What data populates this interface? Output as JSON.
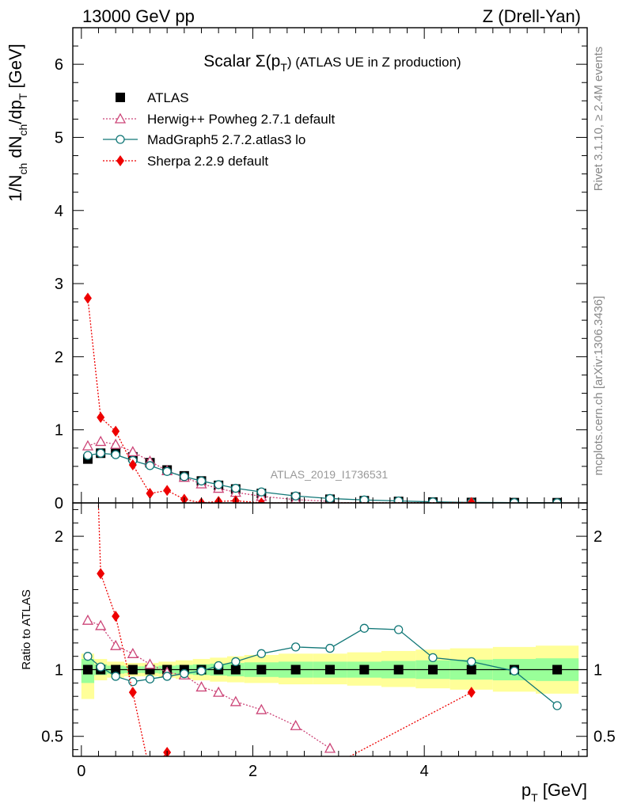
{
  "header": {
    "left": "13000 GeV pp",
    "right": "Z (Drell-Yan)"
  },
  "plot_title": {
    "prefix": "Scalar Σ(p",
    "sub": "T",
    "suffix": ") (ATLAS UE in Z production)"
  },
  "side_text": {
    "rivet": "Rivet 3.1.10, ≥ 2.4M events",
    "mcplots": "mcplots.cern.ch [arXiv:1306.3436]"
  },
  "watermark": "ATLAS_2019_I1736531",
  "ylabel_main": {
    "p1": "1/N",
    "s1": "ch",
    "p2": " dN",
    "s2": "ch",
    "p3": "/dp",
    "s3": "T",
    "p4": " [GeV]"
  },
  "ylabel_ratio": "Ratio to ATLAS",
  "xlabel": {
    "p1": "p",
    "s1": "T",
    "p2": " [GeV]"
  },
  "colors": {
    "atlas": "#000000",
    "herwig": "#cc4477",
    "madgraph": "#117777",
    "sherpa": "#ee0000",
    "band_inner": "#99ff99",
    "band_outer": "#ffff99"
  },
  "chart_data": {
    "type": "line",
    "x_ticks": [
      "0",
      "2",
      "4"
    ],
    "x_range": [
      -0.1,
      5.9
    ],
    "main": {
      "y_range": [
        0,
        6.5
      ],
      "y_ticks": [
        "0",
        "1",
        "2",
        "3",
        "4",
        "5",
        "6"
      ]
    },
    "ratio": {
      "y_range": [
        0.35,
        2.25
      ],
      "y_ticks": [
        "0.5",
        "1",
        "2"
      ]
    },
    "bins": [
      [
        0.0,
        0.15
      ],
      [
        0.15,
        0.3
      ],
      [
        0.3,
        0.5
      ],
      [
        0.5,
        0.7
      ],
      [
        0.7,
        0.9
      ],
      [
        0.9,
        1.1
      ],
      [
        1.1,
        1.3
      ],
      [
        1.3,
        1.5
      ],
      [
        1.5,
        1.7
      ],
      [
        1.7,
        1.9
      ],
      [
        1.9,
        2.3
      ],
      [
        2.3,
        2.7
      ],
      [
        2.7,
        3.1
      ],
      [
        3.1,
        3.5
      ],
      [
        3.5,
        3.9
      ],
      [
        3.9,
        4.3
      ],
      [
        4.3,
        4.8
      ],
      [
        4.8,
        5.3
      ],
      [
        5.3,
        5.8
      ]
    ],
    "band_inner": [
      [
        0.9,
        1.08
      ],
      [
        0.96,
        1.04
      ],
      [
        0.97,
        1.03
      ],
      [
        0.975,
        1.025
      ],
      [
        0.975,
        1.025
      ],
      [
        0.97,
        1.03
      ],
      [
        0.965,
        1.035
      ],
      [
        0.96,
        1.04
      ],
      [
        0.955,
        1.045
      ],
      [
        0.95,
        1.05
      ],
      [
        0.945,
        1.055
      ],
      [
        0.94,
        1.06
      ],
      [
        0.94,
        1.06
      ],
      [
        0.94,
        1.06
      ],
      [
        0.935,
        1.065
      ],
      [
        0.93,
        1.07
      ],
      [
        0.925,
        1.075
      ],
      [
        0.92,
        1.08
      ],
      [
        0.915,
        1.085
      ]
    ],
    "band_outer": [
      [
        0.78,
        1.12
      ],
      [
        0.92,
        1.08
      ],
      [
        0.94,
        1.06
      ],
      [
        0.95,
        1.05
      ],
      [
        0.95,
        1.05
      ],
      [
        0.94,
        1.06
      ],
      [
        0.93,
        1.07
      ],
      [
        0.92,
        1.08
      ],
      [
        0.91,
        1.09
      ],
      [
        0.905,
        1.1
      ],
      [
        0.9,
        1.11
      ],
      [
        0.89,
        1.12
      ],
      [
        0.89,
        1.12
      ],
      [
        0.88,
        1.13
      ],
      [
        0.87,
        1.14
      ],
      [
        0.86,
        1.15
      ],
      [
        0.85,
        1.16
      ],
      [
        0.835,
        1.17
      ],
      [
        0.82,
        1.18
      ]
    ],
    "series": [
      {
        "name": "ATLAS",
        "x": [
          0.075,
          0.225,
          0.4,
          0.6,
          0.8,
          1.0,
          1.2,
          1.4,
          1.6,
          1.8,
          2.1,
          2.5,
          2.9,
          3.3,
          3.7,
          4.1,
          4.55,
          5.05,
          5.55
        ],
        "y": [
          0.6,
          0.68,
          0.7,
          0.63,
          0.55,
          0.45,
          0.37,
          0.3,
          0.24,
          0.19,
          0.13,
          0.08,
          0.05,
          0.03,
          0.02,
          0.012,
          0.006,
          0.004,
          0.003
        ],
        "ratio": [
          1,
          1,
          1,
          1,
          1,
          1,
          1,
          1,
          1,
          1,
          1,
          1,
          1,
          1,
          1,
          1,
          1,
          1,
          1
        ]
      },
      {
        "name": "Herwig++ Powheg 2.7.1 default",
        "x": [
          0.075,
          0.225,
          0.4,
          0.6,
          0.8,
          1.0,
          1.2,
          1.4,
          1.6,
          1.8,
          2.1,
          2.5,
          2.9
        ],
        "y": [
          0.78,
          0.84,
          0.8,
          0.7,
          0.57,
          0.44,
          0.35,
          0.26,
          0.2,
          0.145,
          0.09,
          0.045,
          0.021
        ],
        "ratio": [
          1.37,
          1.33,
          1.18,
          1.12,
          1.04,
          0.98,
          0.96,
          0.87,
          0.83,
          0.76,
          0.7,
          0.58,
          0.41
        ]
      },
      {
        "name": "MadGraph5 2.7.2.atlas3 lo",
        "x": [
          0.075,
          0.225,
          0.4,
          0.6,
          0.8,
          1.0,
          1.2,
          1.4,
          1.6,
          1.8,
          2.1,
          2.5,
          2.9,
          3.3,
          3.7,
          4.1,
          4.55,
          5.05,
          5.55
        ],
        "y": [
          0.65,
          0.68,
          0.66,
          0.58,
          0.51,
          0.43,
          0.36,
          0.3,
          0.25,
          0.2,
          0.15,
          0.095,
          0.06,
          0.041,
          0.027,
          0.014,
          0.007,
          0.004,
          0.0022
        ],
        "ratio": [
          1.1,
          1.02,
          0.95,
          0.91,
          0.93,
          0.95,
          0.97,
          0.99,
          1.03,
          1.06,
          1.12,
          1.17,
          1.16,
          1.31,
          1.3,
          1.09,
          1.06,
          0.99,
          0.73
        ]
      },
      {
        "name": "Sherpa 2.2.9 default",
        "x": [
          0.075,
          0.225,
          0.4,
          0.6,
          0.8,
          1.0,
          1.2,
          1.4,
          1.6,
          1.8,
          2.1,
          4.55
        ],
        "y": [
          2.8,
          1.17,
          0.98,
          0.52,
          0.13,
          0.17,
          0.05,
          0.0,
          0.02,
          0.03,
          0.0,
          0.005
        ],
        "ratio": [
          4.7,
          1.72,
          1.4,
          0.83,
          0.23,
          0.38,
          0.13,
          0.0,
          0.08,
          0.16,
          0.0,
          0.83
        ]
      }
    ]
  }
}
